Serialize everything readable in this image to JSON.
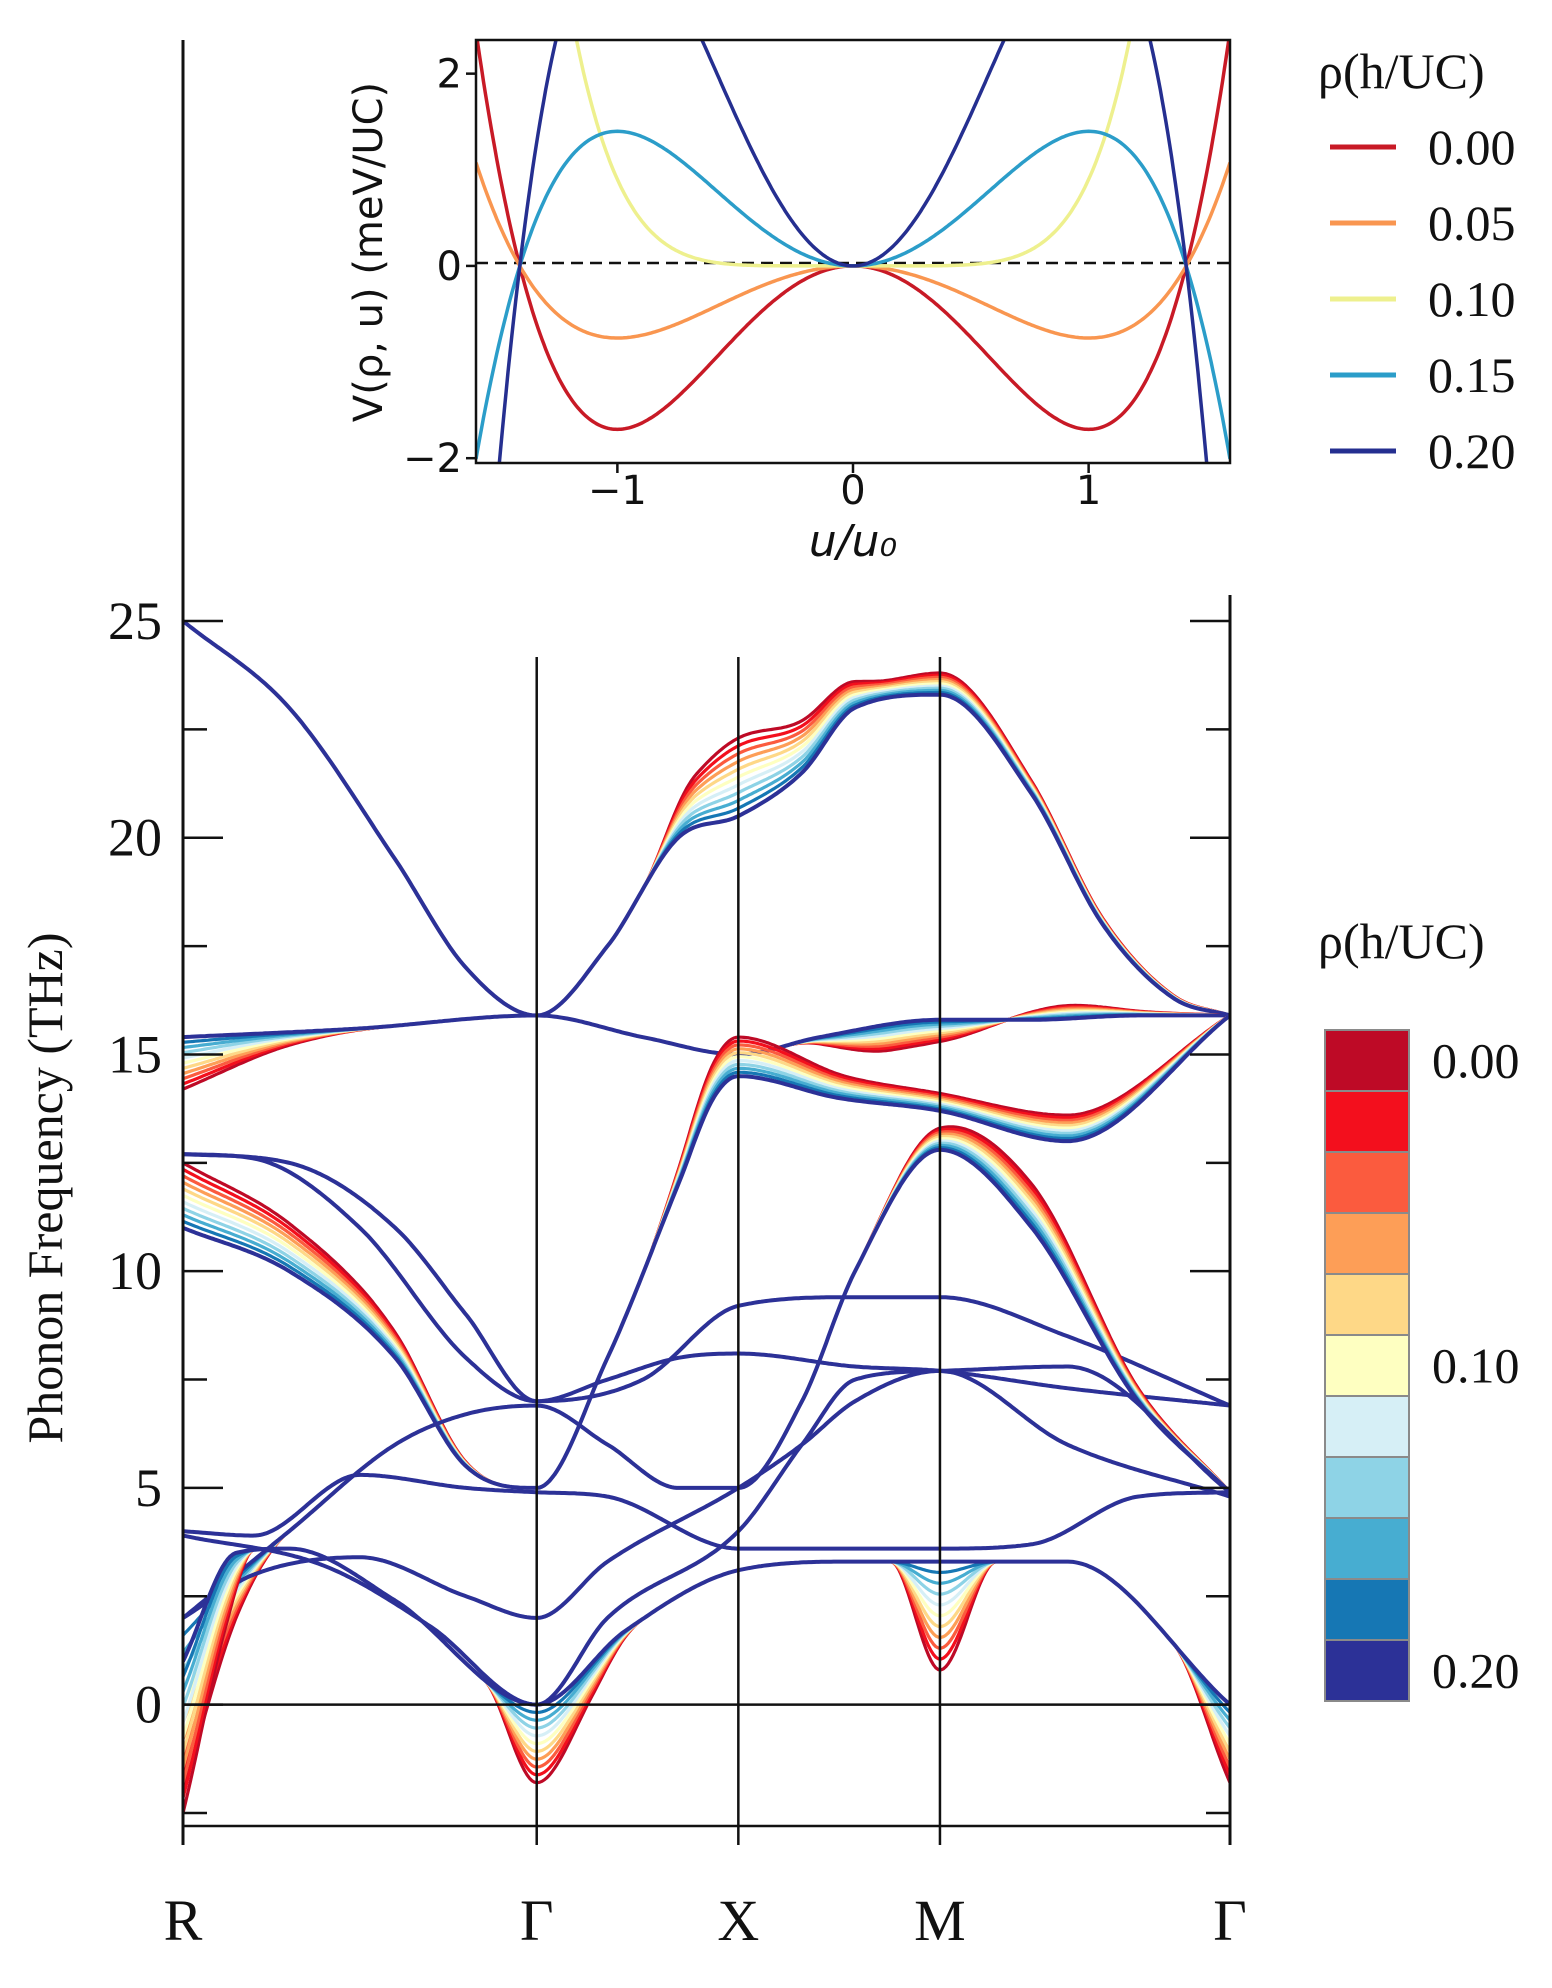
{
  "chart_data": [
    {
      "type": "line",
      "panel": "main",
      "title": "",
      "xlabel": "",
      "ylabel": "Phonon Frequency (THz)",
      "ylim": [
        -2.8,
        25.6
      ],
      "yticks": [
        0,
        5,
        10,
        15,
        20,
        25
      ],
      "high_symmetry_points": [
        {
          "label": "R",
          "pos": 0.0
        },
        {
          "label": "Γ",
          "pos": 1.0
        },
        {
          "label": "X",
          "pos": 1.57
        },
        {
          "label": "M",
          "pos": 2.14
        },
        {
          "label": "Γ",
          "pos": 2.96
        }
      ],
      "colorbar": {
        "title": "ρ(h/UC)",
        "tick_labels": [
          {
            "pos": 0,
            "text": "0.00"
          },
          {
            "pos": 5,
            "text": "0.10"
          },
          {
            "pos": 10,
            "text": "0.20"
          }
        ],
        "colors": [
          "#be0a26",
          "#f30f1d",
          "#fb5b3e",
          "#fd9e57",
          "#fed887",
          "#feffc1",
          "#d6eff6",
          "#8ed3e6",
          "#47add1",
          "#1677b4",
          "#2c3197"
        ]
      },
      "series": [
        {
          "rho": 0.0,
          "color": "#be0a26"
        },
        {
          "rho": 0.02,
          "color": "#f30f1d"
        },
        {
          "rho": 0.04,
          "color": "#fb5b3e"
        },
        {
          "rho": 0.06,
          "color": "#fd9e57"
        },
        {
          "rho": 0.08,
          "color": "#fed887"
        },
        {
          "rho": 0.1,
          "color": "#feffc1"
        },
        {
          "rho": 0.12,
          "color": "#d6eff6"
        },
        {
          "rho": 0.14,
          "color": "#8ed3e6"
        },
        {
          "rho": 0.16,
          "color": "#47add1"
        },
        {
          "rho": 0.18,
          "color": "#1677b4"
        },
        {
          "rho": 0.2,
          "color": "#2c3197"
        }
      ],
      "bands": [
        {
          "base": [
            [
              0,
              25
            ],
            [
              0.3,
              23
            ],
            [
              0.6,
              19.5
            ],
            [
              0.8,
              17
            ],
            [
              1,
              15.9
            ],
            [
              1.2,
              17.5
            ],
            [
              1.4,
              20
            ],
            [
              1.57,
              20.5
            ],
            [
              1.75,
              21.5
            ],
            [
              1.9,
              23
            ],
            [
              2.14,
              23.3
            ],
            [
              2.4,
              21
            ],
            [
              2.6,
              18
            ],
            [
              2.8,
              16.3
            ],
            [
              2.96,
              15.9
            ]
          ],
          "shift": [
            [
              0,
              0
            ],
            [
              1.3,
              0
            ],
            [
              1.45,
              1.2
            ],
            [
              1.57,
              1.8
            ],
            [
              1.75,
              1.2
            ],
            [
              2.0,
              0.4
            ],
            [
              2.14,
              0.5
            ],
            [
              2.5,
              0.2
            ],
            [
              2.96,
              0
            ]
          ]
        },
        {
          "base": [
            [
              0,
              15.4
            ],
            [
              0.5,
              15.6
            ],
            [
              1,
              15.9
            ],
            [
              1.3,
              15.4
            ],
            [
              1.57,
              15
            ],
            [
              1.8,
              15.4
            ],
            [
              2.14,
              15.8
            ],
            [
              2.4,
              15.8
            ],
            [
              2.7,
              15.9
            ],
            [
              2.96,
              15.9
            ]
          ],
          "shift": [
            [
              0,
              -1.2
            ],
            [
              0.3,
              -0.3
            ],
            [
              0.6,
              0
            ],
            [
              1.7,
              0
            ],
            [
              2.0,
              -0.6
            ],
            [
              2.14,
              -0.5
            ],
            [
              2.5,
              0.3
            ],
            [
              2.7,
              0.1
            ],
            [
              2.96,
              0
            ]
          ]
        },
        {
          "base": [
            [
              0,
              12.7
            ],
            [
              0.2,
              12.6
            ],
            [
              0.5,
              11
            ],
            [
              0.8,
              8
            ],
            [
              1,
              7
            ],
            [
              1.2,
              7.5
            ],
            [
              1.4,
              8
            ],
            [
              1.57,
              8.1
            ],
            [
              1.9,
              7.8
            ],
            [
              2.14,
              7.7
            ],
            [
              2.5,
              7.3
            ],
            [
              2.96,
              6.9
            ]
          ]
        },
        {
          "base": [
            [
              0,
              11
            ],
            [
              0.3,
              10
            ],
            [
              0.6,
              8
            ],
            [
              0.8,
              5.5
            ],
            [
              1,
              5
            ],
            [
              1.2,
              8
            ],
            [
              1.4,
              12
            ],
            [
              1.5,
              14
            ],
            [
              1.57,
              14.5
            ],
            [
              1.85,
              14
            ],
            [
              2.14,
              13.7
            ],
            [
              2.5,
              13
            ],
            [
              2.96,
              15.9
            ]
          ],
          "shift": [
            [
              0,
              1.5
            ],
            [
              0.5,
              0.8
            ],
            [
              0.9,
              0
            ],
            [
              1.3,
              0
            ],
            [
              1.5,
              0.8
            ],
            [
              1.57,
              0.9
            ],
            [
              1.9,
              0.5
            ],
            [
              2.14,
              0.4
            ],
            [
              2.5,
              0.6
            ],
            [
              2.96,
              0
            ]
          ]
        },
        {
          "base": [
            [
              0,
              12.7
            ],
            [
              0.3,
              12.5
            ],
            [
              0.6,
              11
            ],
            [
              0.8,
              9
            ],
            [
              1,
              7
            ],
            [
              1.3,
              7.5
            ],
            [
              1.57,
              9.2
            ],
            [
              1.9,
              9.4
            ],
            [
              2.14,
              9.4
            ],
            [
              2.5,
              8.5
            ],
            [
              2.96,
              6.9
            ]
          ]
        },
        {
          "base": [
            [
              0,
              2
            ],
            [
              0.3,
              4
            ],
            [
              0.6,
              6
            ],
            [
              0.8,
              6.7
            ],
            [
              1,
              6.9
            ],
            [
              1.2,
              6
            ],
            [
              1.4,
              5
            ],
            [
              1.57,
              5
            ],
            [
              1.75,
              7
            ],
            [
              1.9,
              10
            ],
            [
              2.14,
              12.8
            ],
            [
              2.4,
              11
            ],
            [
              2.7,
              7
            ],
            [
              2.96,
              4.9
            ]
          ],
          "shift": [
            [
              0,
              -4
            ],
            [
              0.15,
              -1
            ],
            [
              0.3,
              0
            ],
            [
              1.9,
              0
            ],
            [
              2.14,
              0.5
            ],
            [
              2.4,
              1
            ],
            [
              2.7,
              0.3
            ],
            [
              2.96,
              0
            ]
          ]
        },
        {
          "base": [
            [
              0,
              4
            ],
            [
              0.2,
              3.9
            ],
            [
              0.5,
              5.3
            ],
            [
              0.8,
              5
            ],
            [
              1,
              4.9
            ],
            [
              1.2,
              4.8
            ],
            [
              1.57,
              3.6
            ],
            [
              1.8,
              3.6
            ],
            [
              2.14,
              3.6
            ],
            [
              2.4,
              3.7
            ],
            [
              2.7,
              4.8
            ],
            [
              2.96,
              4.9
            ]
          ]
        },
        {
          "base": [
            [
              0,
              3.9
            ],
            [
              0.4,
              3.2
            ],
            [
              0.7,
              1.8
            ],
            [
              1,
              0
            ],
            [
              1.2,
              2
            ],
            [
              1.57,
              4
            ],
            [
              1.75,
              6
            ],
            [
              1.9,
              7.5
            ],
            [
              2.14,
              7.7
            ],
            [
              2.5,
              7.8
            ],
            [
              2.96,
              4.9
            ]
          ]
        },
        {
          "base": [
            [
              0,
              2
            ],
            [
              0.2,
              3
            ],
            [
              0.5,
              3.4
            ],
            [
              0.8,
              2.5
            ],
            [
              1,
              2
            ],
            [
              1.2,
              3.3
            ],
            [
              1.57,
              5
            ],
            [
              1.75,
              6
            ],
            [
              1.9,
              7
            ],
            [
              2.14,
              7.7
            ],
            [
              2.5,
              6
            ],
            [
              2.96,
              4.8
            ]
          ]
        },
        {
          "base": [
            [
              0,
              1
            ],
            [
              0.15,
              3.5
            ],
            [
              0.3,
              3.6
            ],
            [
              0.6,
              2.4
            ],
            [
              1,
              0
            ],
            [
              1.25,
              1.7
            ],
            [
              1.57,
              3.1
            ],
            [
              1.9,
              3.3
            ],
            [
              2.14,
              3.3
            ],
            [
              2.5,
              3.3
            ],
            [
              2.96,
              0
            ]
          ],
          "shift": [
            [
              0,
              -3.5
            ],
            [
              0.12,
              -1.5
            ],
            [
              0.2,
              0
            ],
            [
              0.85,
              0
            ],
            [
              1,
              -1.8
            ],
            [
              1.15,
              -0.8
            ],
            [
              1.3,
              0
            ],
            [
              2.0,
              0
            ],
            [
              2.14,
              -2.5
            ],
            [
              2.3,
              0
            ],
            [
              2.8,
              0
            ],
            [
              2.96,
              -1.8
            ]
          ]
        }
      ]
    },
    {
      "type": "line",
      "panel": "inset",
      "title": "",
      "xlabel": "u/u₀",
      "ylabel": "V(ρ, u) (meV/UC)",
      "xlim": [
        -1.6,
        1.6
      ],
      "ylim": [
        -2.05,
        2.35
      ],
      "xticks": [
        -1,
        0,
        1
      ],
      "yticks": [
        -2,
        0,
        2
      ],
      "reference_line": {
        "y": 0,
        "style": "dashed"
      },
      "legend": {
        "title": "ρ(h/UC)",
        "placement": "right-outside"
      },
      "series": [
        {
          "name": "0.00",
          "rho": 0.0,
          "color": "#c81a26",
          "a": 1.7
        },
        {
          "name": "0.05",
          "rho": 0.05,
          "color": "#f99650",
          "a": 0.75
        },
        {
          "name": "0.10",
          "rho": 0.1,
          "color": "#eef08e",
          "a": 0.0
        },
        {
          "name": "0.15",
          "rho": 0.15,
          "color": "#2b9dc9",
          "a": -1.4
        },
        {
          "name": "0.20",
          "rho": 0.2,
          "color": "#252f90",
          "a": -3.6
        }
      ]
    }
  ]
}
